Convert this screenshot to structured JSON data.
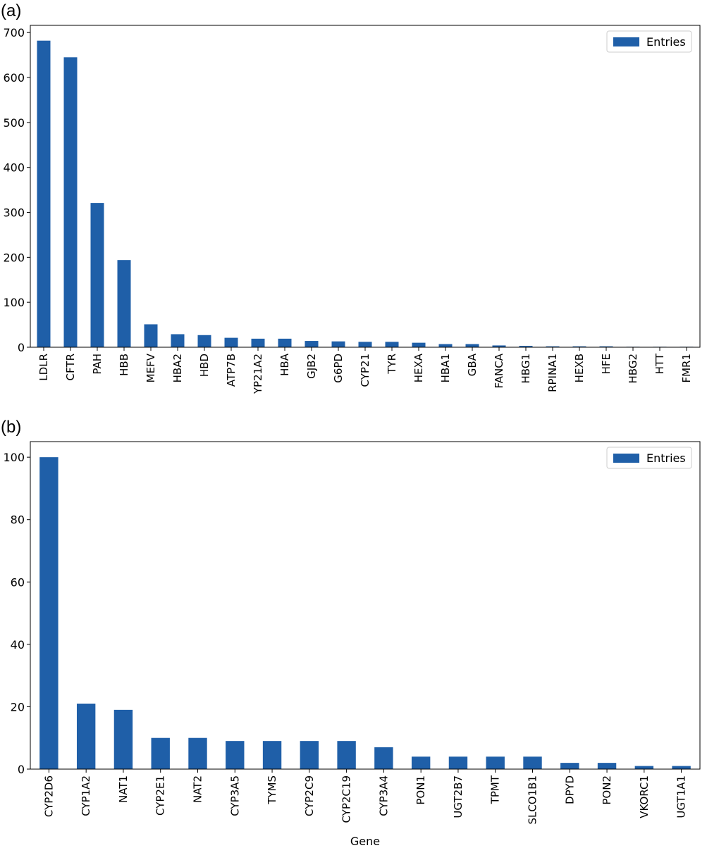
{
  "panels": [
    {
      "label": "(a)"
    },
    {
      "label": "(b)"
    }
  ],
  "colors": {
    "bar": "#1f5fa8",
    "axis": "#000000"
  },
  "chart_data": [
    {
      "type": "bar",
      "categories": [
        "LDLR",
        "CFTR",
        "PAH",
        "HBB",
        "MEFV",
        "HBA2",
        "HBD",
        "ATP7B",
        "YP21A2",
        "HBA",
        "GJB2",
        "G6PD",
        "CYP21",
        "TYR",
        "HEXA",
        "HBA1",
        "GBA",
        "FANCA",
        "HBG1",
        "RPINA1",
        "HEXB",
        "HFE",
        "HBG2",
        "HTT",
        "FMR1"
      ],
      "series": [
        {
          "name": "Entries",
          "values": [
            682,
            645,
            321,
            194,
            51,
            29,
            27,
            21,
            19,
            19,
            14,
            13,
            12,
            12,
            10,
            7,
            7,
            4,
            3,
            2,
            2,
            2,
            1,
            1,
            1
          ]
        }
      ],
      "yticks": [
        0,
        100,
        200,
        300,
        400,
        500,
        600,
        700
      ],
      "ylim": [
        0,
        716
      ],
      "xlabel": "",
      "ylabel": "",
      "legend": "top-right",
      "grid": false
    },
    {
      "type": "bar",
      "categories": [
        "CYP2D6",
        "CYP1A2",
        "NAT1",
        "CYP2E1",
        "NAT2",
        "CYP3A5",
        "TYMS",
        "CYP2C9",
        "CYP2C19",
        "CYP3A4",
        "PON1",
        "UGT2B7",
        "TPMT",
        "SLCO1B1",
        "DPYD",
        "PON2",
        "VKORC1",
        "UGT1A1"
      ],
      "series": [
        {
          "name": "Entries",
          "values": [
            100,
            21,
            19,
            10,
            10,
            9,
            9,
            9,
            9,
            7,
            4,
            4,
            4,
            4,
            2,
            2,
            1,
            1
          ]
        }
      ],
      "yticks": [
        0,
        20,
        40,
        60,
        80,
        100
      ],
      "ylim": [
        0,
        105
      ],
      "xlabel": "Gene",
      "ylabel": "",
      "legend": "top-right",
      "grid": false
    }
  ]
}
